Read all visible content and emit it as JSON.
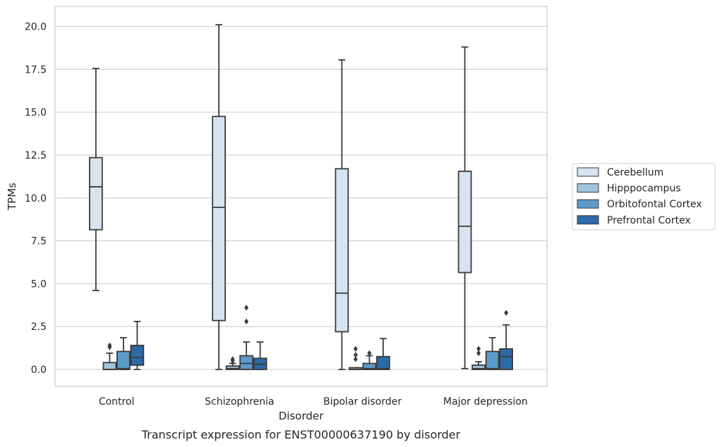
{
  "chart_data": {
    "type": "box",
    "caption": "Transcript expression for ENST00000637190 by disorder",
    "xlabel": "Disorder",
    "ylabel": "TPMs",
    "categories": [
      "Control",
      "Schizophrenia",
      "Bipolar disorder",
      "Major depression"
    ],
    "ylim": [
      -1.0,
      21.2
    ],
    "yticks": [
      "0.0",
      "2.5",
      "5.0",
      "7.5",
      "10.0",
      "12.5",
      "15.0",
      "17.5",
      "20.0"
    ],
    "grid": "horizontal",
    "legend_position": "right",
    "series": [
      {
        "name": "Cerebellum",
        "color": "#d6e4f2",
        "boxes": [
          {
            "whislo": 4.6,
            "q1": 8.15,
            "med": 10.65,
            "q3": 12.35,
            "whishi": 17.55,
            "fliers": []
          },
          {
            "whislo": 0.0,
            "q1": 2.85,
            "med": 9.45,
            "q3": 14.75,
            "whishi": 20.1,
            "fliers": []
          },
          {
            "whislo": 0.0,
            "q1": 2.2,
            "med": 4.45,
            "q3": 11.7,
            "whishi": 18.05,
            "fliers": []
          },
          {
            "whislo": 0.05,
            "q1": 5.65,
            "med": 8.35,
            "q3": 11.55,
            "whishi": 18.8,
            "fliers": []
          }
        ]
      },
      {
        "name": "Hipppocampus",
        "color": "#9fc5df",
        "boxes": [
          {
            "whislo": 0.0,
            "q1": 0.0,
            "med": 0.0,
            "q3": 0.4,
            "whishi": 0.95,
            "fliers": [
              1.4,
              1.3
            ]
          },
          {
            "whislo": 0.0,
            "q1": 0.0,
            "med": 0.05,
            "q3": 0.2,
            "whishi": 0.35,
            "fliers": [
              0.5,
              0.6
            ]
          },
          {
            "whislo": 0.0,
            "q1": 0.0,
            "med": 0.0,
            "q3": 0.1,
            "whishi": 0.1,
            "fliers": [
              0.6,
              0.85,
              1.2
            ]
          },
          {
            "whislo": 0.0,
            "q1": 0.0,
            "med": 0.05,
            "q3": 0.25,
            "whishi": 0.45,
            "fliers": [
              0.95,
              1.2
            ]
          }
        ]
      },
      {
        "name": "Orbitofontal Cortex",
        "color": "#5a9bcb",
        "boxes": [
          {
            "whislo": 0.0,
            "q1": 0.0,
            "med": 0.05,
            "q3": 1.05,
            "whishi": 1.85,
            "fliers": []
          },
          {
            "whislo": 0.0,
            "q1": 0.0,
            "med": 0.35,
            "q3": 0.8,
            "whishi": 1.6,
            "fliers": [
              2.8,
              3.6
            ]
          },
          {
            "whislo": 0.0,
            "q1": 0.0,
            "med": 0.05,
            "q3": 0.35,
            "whishi": 0.8,
            "fliers": [
              0.95
            ]
          },
          {
            "whislo": 0.0,
            "q1": 0.0,
            "med": 0.05,
            "q3": 1.05,
            "whishi": 1.85,
            "fliers": []
          }
        ]
      },
      {
        "name": "Prefrontal Cortex",
        "color": "#2c6aa8",
        "boxes": [
          {
            "whislo": 0.0,
            "q1": 0.25,
            "med": 0.7,
            "q3": 1.4,
            "whishi": 2.8,
            "fliers": []
          },
          {
            "whislo": 0.0,
            "q1": 0.0,
            "med": 0.3,
            "q3": 0.65,
            "whishi": 1.6,
            "fliers": []
          },
          {
            "whislo": 0.0,
            "q1": 0.0,
            "med": 0.05,
            "q3": 0.75,
            "whishi": 1.8,
            "fliers": []
          },
          {
            "whislo": 0.0,
            "q1": 0.0,
            "med": 0.75,
            "q3": 1.2,
            "whishi": 2.6,
            "fliers": [
              3.3
            ]
          }
        ]
      }
    ]
  }
}
